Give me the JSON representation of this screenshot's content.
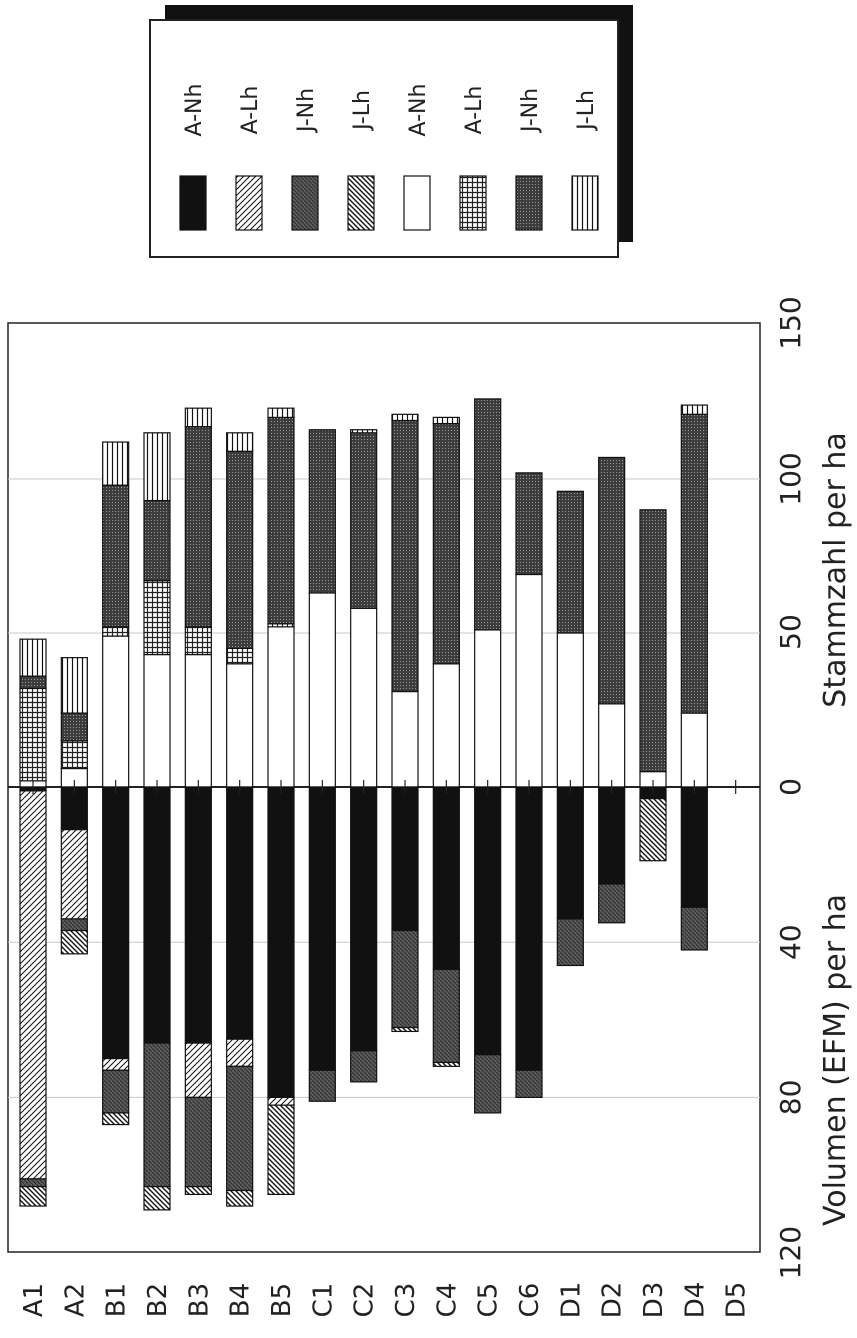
{
  "chart_data": {
    "type": "bar",
    "orientation": "stacked-diverging",
    "categories": [
      "A1",
      "A2",
      "B1",
      "B2",
      "B3",
      "B4",
      "B5",
      "C1",
      "C2",
      "C3",
      "C4",
      "C5",
      "C6",
      "D1",
      "D2",
      "D3",
      "D4",
      "D5"
    ],
    "axes": {
      "top_label": "Stammzahl per ha",
      "top_ticks": [
        "0",
        "50",
        "100",
        "150"
      ],
      "top_range": [
        0,
        150
      ],
      "bottom_label": "Volumen (EFM) per ha",
      "bottom_ticks": [
        "0",
        "40",
        "80",
        "120"
      ],
      "bottom_range": [
        0,
        120
      ]
    },
    "legend": {
      "placement": "top-right",
      "entries": [
        {
          "label": "A-Nh",
          "pattern": "solid-black"
        },
        {
          "label": "A-Lh",
          "pattern": "diag-left"
        },
        {
          "label": "J-Nh",
          "pattern": "dark-gray"
        },
        {
          "label": "J-Lh",
          "pattern": "diag-right"
        },
        {
          "label": "A-Nh",
          "pattern": "white"
        },
        {
          "label": "A-Lh",
          "pattern": "crosshatch"
        },
        {
          "label": "J-Nh",
          "pattern": "dark-dotted"
        },
        {
          "label": "J-Lh",
          "pattern": "vertical-lines"
        }
      ]
    },
    "stammzahl_series": [
      {
        "name": "A-Nh",
        "pattern": "white",
        "values": [
          2,
          6,
          49,
          43,
          43,
          40,
          52,
          63,
          58,
          31,
          40,
          51,
          69,
          50,
          27,
          5,
          24,
          0
        ]
      },
      {
        "name": "A-Lh",
        "pattern": "crosshatch",
        "values": [
          30,
          9,
          3,
          24,
          9,
          5,
          1,
          0,
          0,
          0,
          0,
          0,
          0,
          0,
          0,
          0,
          0,
          0
        ]
      },
      {
        "name": "J-Nh",
        "pattern": "dark-dotted",
        "values": [
          4,
          9,
          46,
          26,
          65,
          64,
          67,
          53,
          57,
          88,
          78,
          75,
          33,
          46,
          80,
          85,
          97,
          0
        ]
      },
      {
        "name": "J-Lh",
        "pattern": "vertical-lines",
        "values": [
          12,
          18,
          14,
          22,
          6,
          6,
          3,
          0,
          1,
          2,
          2,
          0,
          0,
          0,
          0,
          0,
          3,
          0
        ]
      }
    ],
    "volumen_series": [
      {
        "name": "A-Nh",
        "pattern": "solid-black",
        "values": [
          1,
          11,
          70,
          66,
          66,
          65,
          80,
          73,
          68,
          37,
          47,
          69,
          73,
          34,
          25,
          3,
          31,
          0
        ]
      },
      {
        "name": "A-Lh",
        "pattern": "diag-left",
        "values": [
          100,
          23,
          3,
          0,
          14,
          7,
          2,
          0,
          0,
          0,
          0,
          0,
          0,
          0,
          0,
          0,
          0,
          0
        ]
      },
      {
        "name": "J-Nh",
        "pattern": "dark-gray",
        "values": [
          2,
          3,
          11,
          37,
          23,
          32,
          0,
          8,
          8,
          25,
          24,
          15,
          7,
          12,
          10,
          0,
          11,
          0
        ]
      },
      {
        "name": "J-Lh",
        "pattern": "diag-right",
        "values": [
          5,
          6,
          3,
          6,
          2,
          4,
          23,
          0,
          0,
          1,
          1,
          0,
          0,
          0,
          0,
          16,
          0,
          0
        ]
      }
    ]
  }
}
